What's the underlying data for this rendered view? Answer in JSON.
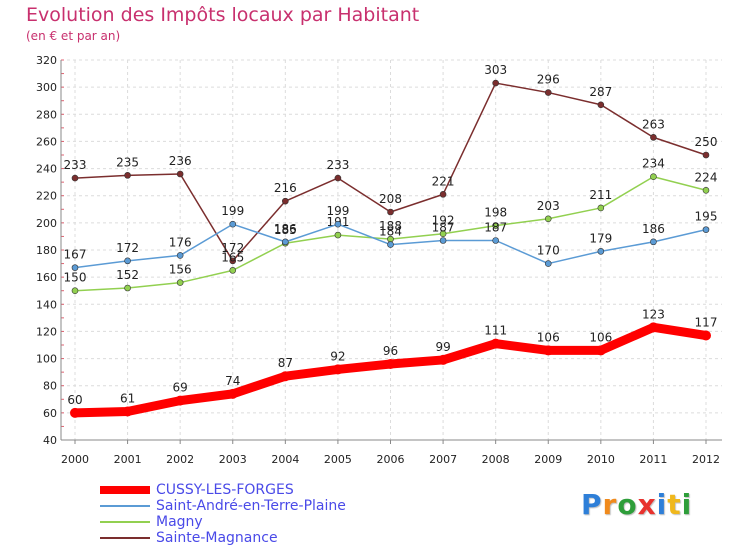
{
  "title": "Evolution des Impôts locaux par Habitant",
  "subtitle": "(en € et par an)",
  "logo": {
    "text": "Proxiti",
    "letter_colors": [
      "#2e7fd8",
      "#f08a1c",
      "#2e9e3a",
      "#e8322e",
      "#2e7fd8",
      "#f0b81c",
      "#2e9e3a"
    ]
  },
  "chart_data": {
    "type": "line",
    "x": [
      "2000",
      "2001",
      "2002",
      "2003",
      "2004",
      "2005",
      "2006",
      "2007",
      "2008",
      "2009",
      "2010",
      "2011",
      "2012"
    ],
    "ylim": [
      40,
      320
    ],
    "y_ticks": [
      40,
      60,
      80,
      100,
      120,
      140,
      160,
      180,
      200,
      220,
      240,
      260,
      280,
      300,
      320
    ],
    "grid": true,
    "legend_position": "bottom-left",
    "series": [
      {
        "name": "CUSSY-LES-FORGES",
        "color": "#ff0000",
        "values": [
          60,
          61,
          69,
          74,
          87,
          92,
          96,
          99,
          111,
          106,
          106,
          123,
          117
        ]
      },
      {
        "name": "Saint-André-en-Terre-Plaine",
        "color": "#5b9bd5",
        "values": [
          167,
          172,
          176,
          199,
          186,
          199,
          184,
          187,
          187,
          170,
          179,
          186,
          195
        ]
      },
      {
        "name": "Magny",
        "color": "#92d050",
        "values": [
          150,
          152,
          156,
          165,
          185,
          191,
          188,
          192,
          198,
          203,
          211,
          234,
          224
        ]
      },
      {
        "name": "Sainte-Magnance",
        "color": "#7b2e2e",
        "values": [
          233,
          235,
          236,
          172,
          216,
          233,
          208,
          221,
          303,
          296,
          287,
          263,
          250
        ]
      }
    ]
  }
}
